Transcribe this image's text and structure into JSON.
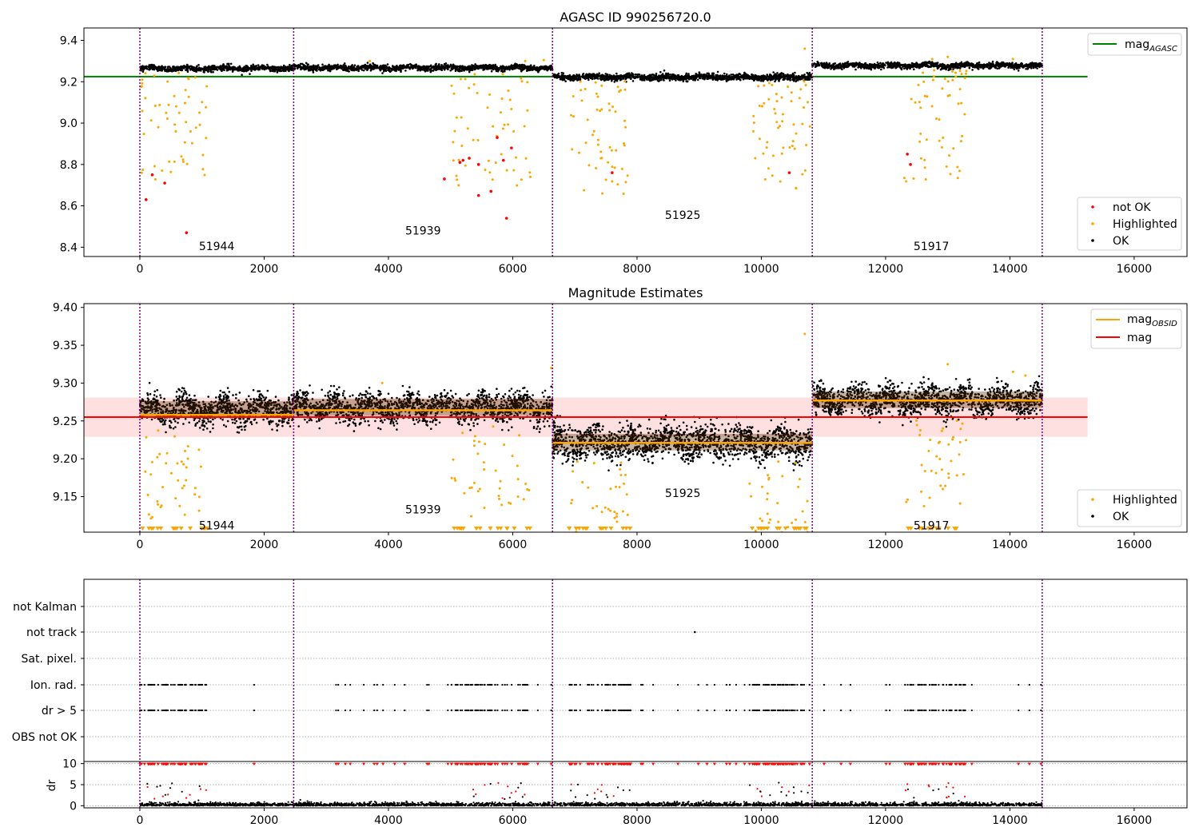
{
  "chart_data": [
    {
      "type": "scatter",
      "title": "AGASC ID 990256720.0",
      "xlim": [
        -900,
        16850
      ],
      "ylim": [
        8.355,
        9.46
      ],
      "xticks": [
        "0",
        "2000",
        "4000",
        "6000",
        "8000",
        "10000",
        "12000",
        "14000",
        "16000"
      ],
      "yticks": [
        "8.4",
        "8.6",
        "8.8",
        "9.0",
        "9.2",
        "9.4"
      ],
      "obs_boundaries": [
        0,
        2475,
        6640,
        10820,
        14520
      ],
      "obsids": [
        {
          "label": "51944",
          "x": 950,
          "y": 8.405
        },
        {
          "label": "51939",
          "x": 4270,
          "y": 8.48
        },
        {
          "label": "51925",
          "x": 8450,
          "y": 8.555
        },
        {
          "label": "51917",
          "x": 12450,
          "y": 8.405
        }
      ],
      "reference_lines": [
        {
          "name": "mag_AGASC",
          "y": 9.225,
          "x_range": [
            -900,
            15250
          ],
          "color": "#008000"
        }
      ],
      "series": [
        {
          "name": "not OK",
          "color": "#ff0000"
        },
        {
          "name": "Highlighted",
          "color": "#ffa500"
        },
        {
          "name": "OK",
          "color": "#000000"
        }
      ],
      "legend_upper": [
        {
          "label": "mag",
          "sub": "AGASC",
          "color": "#008000"
        }
      ],
      "legend_lower": [
        "not OK",
        "Highlighted",
        "OK"
      ],
      "segments": [
        {
          "x0": 0,
          "x1": 2475,
          "center": 9.265,
          "spread": 0.012
        },
        {
          "x0": 2475,
          "x1": 6640,
          "center": 9.268,
          "spread": 0.012
        },
        {
          "x0": 6640,
          "x1": 10820,
          "center": 9.222,
          "spread": 0.014
        },
        {
          "x0": 10820,
          "x1": 14520,
          "center": 9.278,
          "spread": 0.012
        }
      ],
      "dip_windows": [
        [
          0,
          1100
        ],
        [
          5000,
          6300
        ],
        [
          6900,
          7900
        ],
        [
          9800,
          10800
        ],
        [
          12300,
          13300
        ]
      ],
      "grid": false
    },
    {
      "type": "scatter",
      "title": "Magnitude Estimates",
      "xlim": [
        -900,
        16850
      ],
      "ylim": [
        9.103,
        9.405
      ],
      "xticks": [
        "0",
        "2000",
        "4000",
        "6000",
        "8000",
        "10000",
        "12000",
        "14000",
        "16000"
      ],
      "yticks": [
        "9.15",
        "9.20",
        "9.25",
        "9.30",
        "9.35",
        "9.40"
      ],
      "obsids": [
        {
          "label": "51944",
          "x": 950,
          "y": 9.112
        },
        {
          "label": "51939",
          "x": 4270,
          "y": 9.133
        },
        {
          "label": "51925",
          "x": 8450,
          "y": 9.155
        },
        {
          "label": "51917",
          "x": 12450,
          "y": 9.112
        }
      ],
      "mag_line": {
        "name": "mag",
        "y": 9.255,
        "band": [
          9.229,
          9.281
        ],
        "x_range": [
          -900,
          15250
        ],
        "color": "#ff0000"
      },
      "obsid_mags": [
        {
          "x0": 0,
          "x1": 2475,
          "y": 9.258
        },
        {
          "x0": 2475,
          "x1": 6640,
          "y": 9.264
        },
        {
          "x0": 6640,
          "x1": 10820,
          "y": 9.221
        },
        {
          "x0": 10820,
          "x1": 14520,
          "y": 9.277
        }
      ],
      "legend_upper": [
        {
          "label": "mag",
          "sub": "OBSID",
          "color": "#ffa500"
        },
        {
          "label": "mag",
          "sub": "",
          "color": "#ff0000"
        }
      ],
      "legend_lower": [
        "Highlighted",
        "OK"
      ],
      "grid": false
    },
    {
      "type": "scatter",
      "title": "",
      "flag_labels": [
        "not Kalman",
        "not track",
        "Sat. pixel.",
        "Ion. rad.",
        "dr > 5",
        "OBS not OK"
      ],
      "flag_events": {
        "not track": [
          8930
        ],
        "Ion. rad.": "same as dr > 5"
      },
      "dr_axis": {
        "label": "dr",
        "yticks": [
          "0",
          "5",
          "10"
        ],
        "ylim": [
          -0.5,
          10.5
        ]
      },
      "xticks": [
        "0",
        "2000",
        "4000",
        "6000",
        "8000",
        "10000",
        "12000",
        "14000",
        "16000"
      ],
      "grid": true
    }
  ]
}
